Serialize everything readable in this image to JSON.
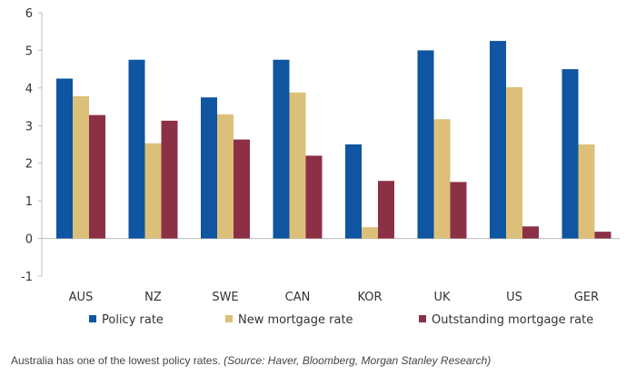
{
  "chart_data": {
    "type": "bar",
    "categories": [
      "AUS",
      "NZ",
      "SWE",
      "CAN",
      "KOR",
      "UK",
      "US",
      "GER"
    ],
    "series": [
      {
        "name": "Policy rate",
        "color": "#0f55a1",
        "values": [
          4.25,
          4.75,
          3.75,
          4.75,
          2.5,
          5.0,
          5.25,
          4.5
        ]
      },
      {
        "name": "New mortgage rate",
        "color": "#dcc07a",
        "values": [
          3.78,
          2.53,
          3.3,
          3.88,
          0.3,
          3.17,
          4.02,
          2.5
        ]
      },
      {
        "name": "Outstanding mortgage rate",
        "color": "#8c3045",
        "values": [
          3.28,
          3.13,
          2.63,
          2.2,
          1.53,
          1.5,
          0.32,
          0.18
        ]
      }
    ],
    "yticks": [
      "6",
      "5",
      "4",
      "3",
      "2",
      "1",
      "0",
      "-1"
    ],
    "ylim": [
      -1,
      6
    ],
    "grid": false,
    "legend_position": "bottom"
  },
  "caption": {
    "text": "Australia has one of the lowest policy rates. ",
    "source": "(Source: Haver, Bloomberg, Morgan Stanley Research)"
  }
}
